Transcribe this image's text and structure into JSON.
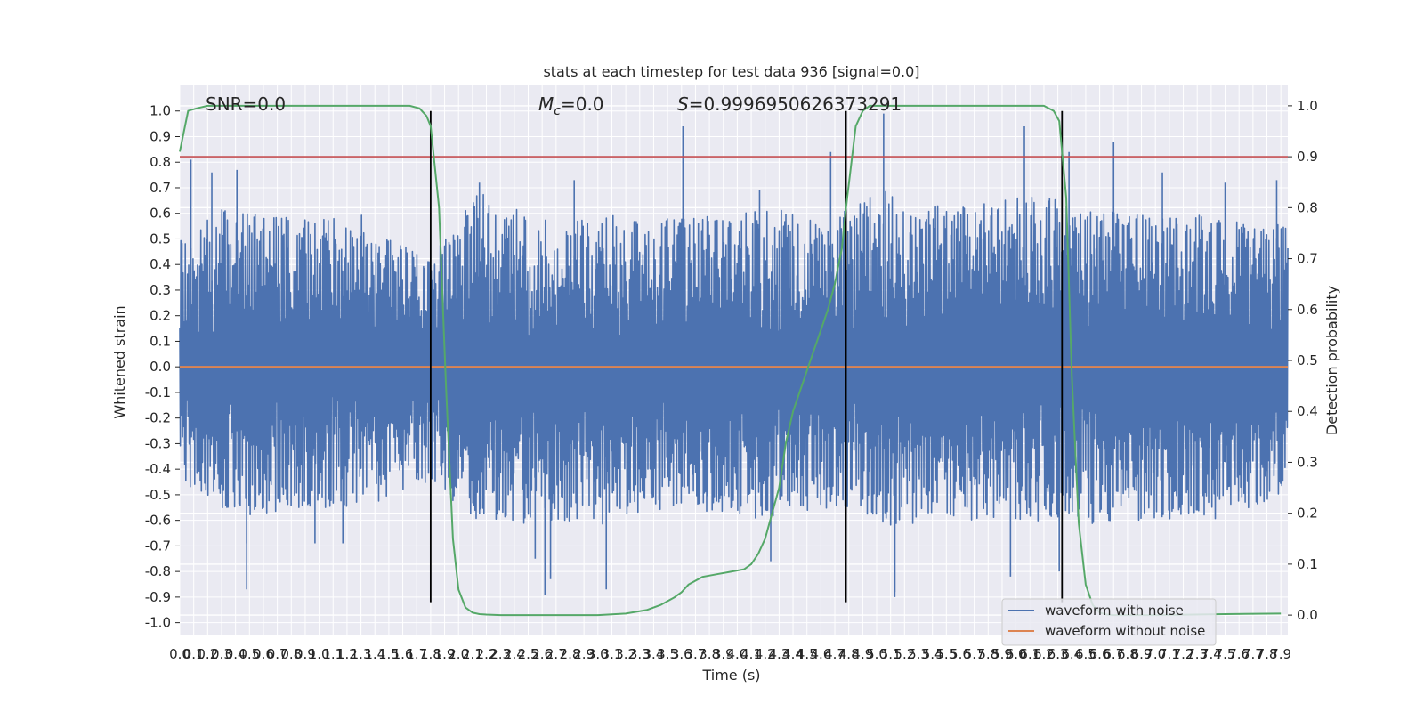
{
  "chart_data": {
    "type": "line",
    "title": "stats at each timestep for test data 936 [signal=0.0]",
    "xlabel": "Time (s)",
    "ylabel": "Whitened strain",
    "y2label": "Detection probability",
    "xlim": [
      0.0,
      7.95
    ],
    "ylim": [
      -1.05,
      1.1
    ],
    "y2lim": [
      -0.04,
      1.04
    ],
    "grid": true,
    "legend_position": "lower-right",
    "x_tick_labels": [
      "0.0",
      "0.1",
      "0.2",
      "0.3",
      "0.4",
      "0.5",
      "0.6",
      "0.7",
      "0.8",
      "0.9",
      "1.0",
      "1.1",
      "1.2",
      "1.3",
      "1.4",
      "1.5",
      "1.6",
      "1.7",
      "1.8",
      "1.9",
      "2.0",
      "2.1",
      "2.2",
      "2.3",
      "2.4",
      "2.5",
      "2.6",
      "2.7",
      "2.8",
      "2.9",
      "3.0",
      "3.1",
      "3.2",
      "3.3",
      "3.4",
      "3.5",
      "3.6",
      "3.7",
      "3.8",
      "3.9",
      "4.0",
      "4.1",
      "4.2",
      "4.3",
      "4.4",
      "4.5",
      "4.6",
      "4.7",
      "4.8",
      "4.9",
      "5.0",
      "5.1",
      "5.2",
      "5.3",
      "5.4",
      "5.5",
      "5.6",
      "5.7",
      "5.8",
      "5.9",
      "6.0",
      "6.1",
      "6.2",
      "6.3",
      "6.4",
      "6.5",
      "6.6",
      "6.7",
      "6.8",
      "6.9",
      "7.0",
      "7.1",
      "7.2",
      "7.3",
      "7.4",
      "7.5",
      "7.6",
      "7.7",
      "7.8",
      "7.9"
    ],
    "y_tick_labels": [
      "1.0",
      "0.9",
      "0.8",
      "0.7",
      "0.6",
      "0.5",
      "0.4",
      "0.3",
      "0.2",
      "0.1",
      "0.0",
      "-0.1",
      "-0.2",
      "-0.3",
      "-0.4",
      "-0.5",
      "-0.6",
      "-0.7",
      "-0.8",
      "-0.9",
      "-1.0"
    ],
    "y2_tick_labels": [
      "1.0",
      "0.9",
      "0.8",
      "0.7",
      "0.6",
      "0.5",
      "0.4",
      "0.3",
      "0.2",
      "0.1",
      "0.0"
    ],
    "annotations": {
      "snr": "SNR=0.0",
      "mc_symbol": "M",
      "mc_sub": "c",
      "mc_value": "=0.0",
      "s_symbol": "S",
      "s_value": "=0.9996950626373291"
    },
    "series": [
      {
        "name": "waveform with noise",
        "color": "#4c72b0",
        "noise_envelope": {
          "x": [
            0.0,
            0.3,
            0.5,
            0.9,
            1.3,
            1.8,
            2.1,
            2.5,
            3.0,
            3.6,
            4.2,
            4.7,
            5.1,
            5.5,
            6.1,
            6.8,
            7.4,
            7.95
          ],
          "upper": [
            0.5,
            0.62,
            0.6,
            0.58,
            0.6,
            0.42,
            0.7,
            0.6,
            0.6,
            0.58,
            0.62,
            0.6,
            0.7,
            0.62,
            0.68,
            0.6,
            0.6,
            0.55
          ],
          "lower": [
            -0.45,
            -0.55,
            -0.58,
            -0.55,
            -0.55,
            -0.45,
            -0.6,
            -0.62,
            -0.62,
            -0.55,
            -0.6,
            -0.55,
            -0.62,
            -0.6,
            -0.6,
            -0.62,
            -0.6,
            -0.5
          ]
        },
        "spikes": [
          [
            0.08,
            0.81
          ],
          [
            0.23,
            0.76
          ],
          [
            0.41,
            0.77
          ],
          [
            0.48,
            -0.69
          ],
          [
            0.48,
            -0.87
          ],
          [
            0.97,
            -0.69
          ],
          [
            1.17,
            -0.69
          ],
          [
            2.15,
            0.72
          ],
          [
            2.55,
            -0.75
          ],
          [
            2.62,
            -0.89
          ],
          [
            2.66,
            -0.83
          ],
          [
            2.83,
            0.73
          ],
          [
            3.06,
            -0.87
          ],
          [
            3.61,
            0.94
          ],
          [
            4.16,
            0.69
          ],
          [
            4.24,
            -0.76
          ],
          [
            4.67,
            0.84
          ],
          [
            4.78,
            -0.58
          ],
          [
            5.05,
            0.99
          ],
          [
            5.13,
            -0.88
          ],
          [
            5.13,
            -0.9
          ],
          [
            5.96,
            -0.82
          ],
          [
            6.06,
            0.94
          ],
          [
            6.31,
            -0.8
          ],
          [
            6.38,
            0.84
          ],
          [
            6.7,
            0.88
          ],
          [
            7.05,
            0.76
          ],
          [
            7.5,
            0.72
          ],
          [
            7.87,
            0.73
          ]
        ]
      },
      {
        "name": "waveform without noise",
        "color": "#dd8452",
        "x": [
          0.0,
          7.95
        ],
        "y": [
          0.0,
          0.0
        ]
      },
      {
        "color": "#55a868",
        "axis": "y2",
        "x": [
          0.0,
          0.06,
          0.12,
          0.2,
          0.5,
          1.0,
          1.5,
          1.65,
          1.72,
          1.77,
          1.8,
          1.86,
          1.91,
          1.96,
          2.0,
          2.05,
          2.1,
          2.15,
          2.2,
          2.3,
          2.5,
          2.8,
          3.0,
          3.2,
          3.35,
          3.45,
          3.55,
          3.6,
          3.65,
          3.75,
          3.85,
          3.95,
          4.05,
          4.1,
          4.15,
          4.2,
          4.3,
          4.35,
          4.4,
          4.5,
          4.55,
          4.6,
          4.65,
          4.7,
          4.75,
          4.78,
          4.85,
          4.9,
          4.95,
          5.0,
          5.5,
          6.0,
          6.2,
          6.27,
          6.31,
          6.36,
          6.4,
          6.45,
          6.5,
          6.55,
          6.6,
          6.65,
          6.7,
          6.8,
          7.0,
          7.5,
          7.9
        ],
        "y": [
          0.91,
          0.99,
          0.995,
          1.0,
          1.0,
          1.0,
          1.0,
          1.0,
          0.995,
          0.98,
          0.96,
          0.8,
          0.45,
          0.15,
          0.05,
          0.015,
          0.005,
          0.002,
          0.001,
          0.0,
          0.0,
          0.0,
          0.0,
          0.003,
          0.01,
          0.02,
          0.035,
          0.045,
          0.06,
          0.075,
          0.08,
          0.085,
          0.09,
          0.1,
          0.12,
          0.15,
          0.25,
          0.34,
          0.4,
          0.48,
          0.52,
          0.56,
          0.6,
          0.65,
          0.72,
          0.8,
          0.96,
          0.99,
          1.0,
          1.0,
          1.0,
          1.0,
          1.0,
          0.99,
          0.97,
          0.82,
          0.47,
          0.18,
          0.06,
          0.02,
          0.005,
          0.001,
          0.0,
          0.0,
          0.0,
          0.002,
          0.003
        ]
      }
    ],
    "threshold_line": {
      "y2": 0.9,
      "color": "#c44e52"
    },
    "vertical_markers": {
      "x": [
        1.8,
        4.78,
        6.33
      ],
      "y_range": [
        -0.92,
        1.0
      ],
      "color": "#000000"
    },
    "colors": {
      "background": "#eaeaf2",
      "grid": "#ffffff"
    }
  }
}
